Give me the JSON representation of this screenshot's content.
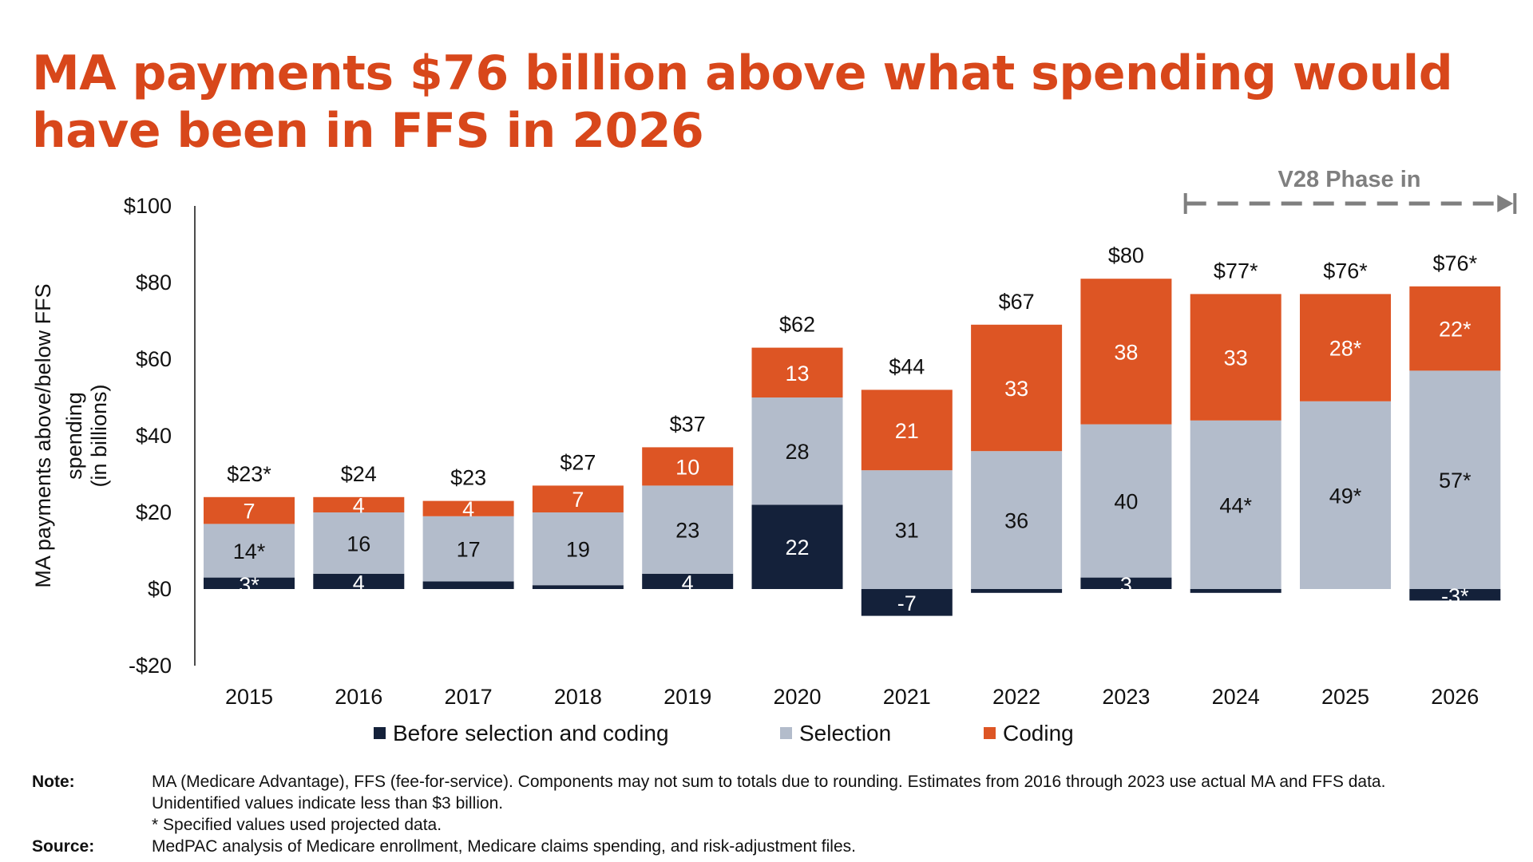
{
  "title": {
    "line1": "MA payments $76 billion above what spending would",
    "line2": "have been in FFS in 2026"
  },
  "colors": {
    "title": "#D8471B",
    "before": "#14213A",
    "selection": "#B3BCCB",
    "coding": "#DD5524",
    "annotation": "#7F7F7F"
  },
  "chart_data": {
    "type": "bar",
    "stacked": true,
    "title": "MA payments $76 billion above what spending would have been in FFS in 2026",
    "ylabel_lines": [
      "MA payments above/below  FFS",
      "spending",
      "(in billions)"
    ],
    "ylim": [
      -20,
      100
    ],
    "yticks": [
      -20,
      0,
      20,
      40,
      60,
      80,
      100
    ],
    "ytick_labels": [
      "-$20",
      "$0",
      "$20",
      "$40",
      "$60",
      "$80",
      "$100"
    ],
    "categories": [
      "2015",
      "2016",
      "2017",
      "2018",
      "2019",
      "2020",
      "2021",
      "2022",
      "2023",
      "2024",
      "2025",
      "2026"
    ],
    "series": [
      {
        "name": "Before selection and coding",
        "key": "before",
        "values": [
          3,
          4,
          2,
          1,
          4,
          22,
          -7,
          -1,
          3,
          -1,
          0,
          -3
        ],
        "labels": [
          "3*",
          "4",
          "",
          "",
          "4",
          "22",
          "-7",
          "",
          "3",
          "",
          "",
          "-3*"
        ]
      },
      {
        "name": "Selection",
        "key": "selection",
        "values": [
          14,
          16,
          17,
          19,
          23,
          28,
          31,
          36,
          40,
          44,
          49,
          57
        ],
        "labels": [
          "14*",
          "16",
          "17",
          "19",
          "23",
          "28",
          "31",
          "36",
          "40",
          "44*",
          "49*",
          "57*"
        ]
      },
      {
        "name": "Coding",
        "key": "coding",
        "values": [
          7,
          4,
          4,
          7,
          10,
          13,
          21,
          33,
          38,
          33,
          28,
          22
        ],
        "labels": [
          "7",
          "4",
          "4",
          "7",
          "10",
          "13",
          "21",
          "33",
          "38",
          "33",
          "28*",
          "22*"
        ]
      }
    ],
    "totals": [
      "$23*",
      "$24",
      "$23",
      "$27",
      "$37",
      "$62",
      "$44",
      "$67",
      "$80",
      "$77*",
      "$76*",
      "$76*"
    ],
    "annotation": {
      "text": "V28 Phase in",
      "from_category": "2024",
      "to_category": "2026"
    },
    "legend": {
      "position": "bottom",
      "items": [
        "Before selection and coding",
        "Selection",
        "Coding"
      ]
    }
  },
  "notes": {
    "note_label": "Note:",
    "note_lines": [
      "MA (Medicare Advantage), FFS (fee-for-service). Components may not sum to totals due to rounding. Estimates from 2016 through 2023 use actual MA and FFS data.",
      "Unidentified values indicate less than $3 billion.",
      "* Specified values used projected data."
    ],
    "source_label": "Source:",
    "source_text": "MedPAC analysis of Medicare enrollment, Medicare claims spending, and risk-adjustment files."
  }
}
